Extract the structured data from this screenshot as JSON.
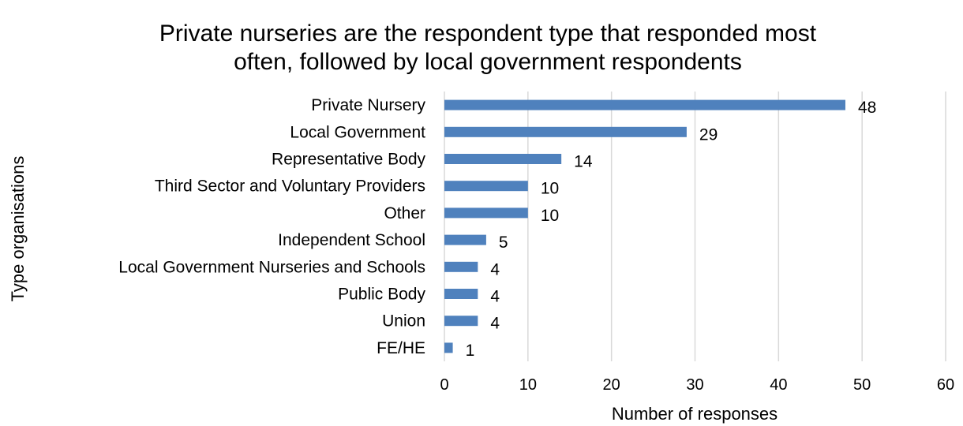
{
  "chart_data": {
    "type": "bar",
    "orientation": "horizontal",
    "title_lines": [
      "Private nurseries are the respondent type that responded most",
      "often, followed by local government respondents"
    ],
    "xlabel": "Number of responses",
    "ylabel": "Type organisations",
    "xlim": [
      0,
      60
    ],
    "xticks": [
      0,
      10,
      20,
      30,
      40,
      50,
      60
    ],
    "grid": "vertical",
    "legend": "none",
    "bar_color": "#4f81bd",
    "categories": [
      "Private Nursery",
      "Local Government",
      "Representative Body",
      "Third Sector and Voluntary Providers",
      "Other",
      "Independent School",
      "Local Government Nurseries and Schools",
      "Public Body",
      "Union",
      "FE/HE"
    ],
    "values": [
      48,
      29,
      14,
      10,
      10,
      5,
      4,
      4,
      4,
      1
    ]
  }
}
